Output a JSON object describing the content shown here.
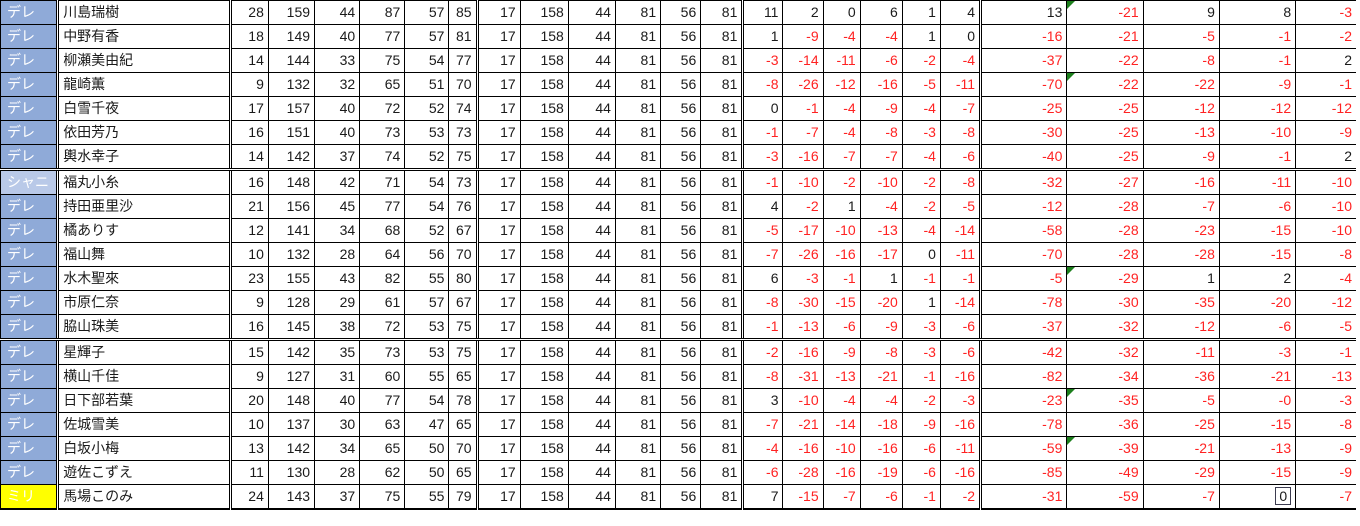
{
  "colors": {
    "negative_text": "#ff2222",
    "positive_text": "#1a1a1a",
    "dere_bg": "#8faad8",
    "shani_bg": "#b9c9e8",
    "miri_bg": "#ffff00",
    "label_text": "#ffffff",
    "triangle": "#1d801d"
  },
  "sheet": {
    "group_separators_after_rows": [
      7,
      14
    ],
    "rows": [
      {
        "tag": "デレ",
        "type": "dere",
        "name": "川島瑞樹",
        "g1": [
          "28",
          "159",
          "44",
          "87",
          "57",
          "85"
        ],
        "g2": [
          "17",
          "158",
          "44",
          "81",
          "56",
          "81"
        ],
        "g3": [
          "11",
          "2",
          "0",
          "6",
          "1",
          "4"
        ],
        "g4": [
          "13",
          "-21",
          "9",
          "8",
          "-3"
        ],
        "triangle": 1
      },
      {
        "tag": "デレ",
        "type": "dere",
        "name": "中野有香",
        "g1": [
          "18",
          "149",
          "40",
          "77",
          "57",
          "81"
        ],
        "g2": [
          "17",
          "158",
          "44",
          "81",
          "56",
          "81"
        ],
        "g3": [
          "1",
          "-9",
          "-4",
          "-4",
          "1",
          "0"
        ],
        "g4": [
          "-16",
          "-21",
          "-5",
          "-1",
          "-2"
        ]
      },
      {
        "tag": "デレ",
        "type": "dere",
        "name": "柳瀬美由紀",
        "g1": [
          "14",
          "144",
          "33",
          "75",
          "54",
          "77"
        ],
        "g2": [
          "17",
          "158",
          "44",
          "81",
          "56",
          "81"
        ],
        "g3": [
          "-3",
          "-14",
          "-11",
          "-6",
          "-2",
          "-4"
        ],
        "g4": [
          "-37",
          "-22",
          "-8",
          "-1",
          "2"
        ]
      },
      {
        "tag": "デレ",
        "type": "dere",
        "name": "龍崎薫",
        "g1": [
          "9",
          "132",
          "32",
          "65",
          "51",
          "70"
        ],
        "g2": [
          "17",
          "158",
          "44",
          "81",
          "56",
          "81"
        ],
        "g3": [
          "-8",
          "-26",
          "-12",
          "-16",
          "-5",
          "-11"
        ],
        "g4": [
          "-70",
          "-22",
          "-22",
          "-9",
          "-1"
        ],
        "triangle": 1
      },
      {
        "tag": "デレ",
        "type": "dere",
        "name": "白雪千夜",
        "g1": [
          "17",
          "157",
          "40",
          "72",
          "52",
          "74"
        ],
        "g2": [
          "17",
          "158",
          "44",
          "81",
          "56",
          "81"
        ],
        "g3": [
          "0",
          "-1",
          "-4",
          "-9",
          "-4",
          "-7"
        ],
        "g4": [
          "-25",
          "-25",
          "-12",
          "-12",
          "-12"
        ]
      },
      {
        "tag": "デレ",
        "type": "dere",
        "name": "依田芳乃",
        "g1": [
          "16",
          "151",
          "40",
          "73",
          "53",
          "73"
        ],
        "g2": [
          "17",
          "158",
          "44",
          "81",
          "56",
          "81"
        ],
        "g3": [
          "-1",
          "-7",
          "-4",
          "-8",
          "-3",
          "-8"
        ],
        "g4": [
          "-30",
          "-25",
          "-13",
          "-10",
          "-9"
        ]
      },
      {
        "tag": "デレ",
        "type": "dere",
        "name": "輿水幸子",
        "g1": [
          "14",
          "142",
          "37",
          "74",
          "52",
          "75"
        ],
        "g2": [
          "17",
          "158",
          "44",
          "81",
          "56",
          "81"
        ],
        "g3": [
          "-3",
          "-16",
          "-7",
          "-7",
          "-4",
          "-6"
        ],
        "g4": [
          "-40",
          "-25",
          "-9",
          "-1",
          "2"
        ]
      },
      {
        "tag": "シャニ",
        "type": "shani",
        "name": "福丸小糸",
        "g1": [
          "16",
          "148",
          "42",
          "71",
          "54",
          "73"
        ],
        "g2": [
          "17",
          "158",
          "44",
          "81",
          "56",
          "81"
        ],
        "g3": [
          "-1",
          "-10",
          "-2",
          "-10",
          "-2",
          "-8"
        ],
        "g4": [
          "-32",
          "-27",
          "-16",
          "-11",
          "-10"
        ]
      },
      {
        "tag": "デレ",
        "type": "dere",
        "name": "持田亜里沙",
        "g1": [
          "21",
          "156",
          "45",
          "77",
          "54",
          "76"
        ],
        "g2": [
          "17",
          "158",
          "44",
          "81",
          "56",
          "81"
        ],
        "g3": [
          "4",
          "-2",
          "1",
          "-4",
          "-2",
          "-5"
        ],
        "g4": [
          "-12",
          "-28",
          "-7",
          "-6",
          "-10"
        ]
      },
      {
        "tag": "デレ",
        "type": "dere",
        "name": "橘ありす",
        "g1": [
          "12",
          "141",
          "34",
          "68",
          "52",
          "67"
        ],
        "g2": [
          "17",
          "158",
          "44",
          "81",
          "56",
          "81"
        ],
        "g3": [
          "-5",
          "-17",
          "-10",
          "-13",
          "-4",
          "-14"
        ],
        "g4": [
          "-58",
          "-28",
          "-23",
          "-15",
          "-10"
        ]
      },
      {
        "tag": "デレ",
        "type": "dere",
        "name": "福山舞",
        "g1": [
          "10",
          "132",
          "28",
          "64",
          "56",
          "70"
        ],
        "g2": [
          "17",
          "158",
          "44",
          "81",
          "56",
          "81"
        ],
        "g3": [
          "-7",
          "-26",
          "-16",
          "-17",
          "0",
          "-11"
        ],
        "g4": [
          "-70",
          "-28",
          "-28",
          "-15",
          "-8"
        ]
      },
      {
        "tag": "デレ",
        "type": "dere",
        "name": "水木聖來",
        "g1": [
          "23",
          "155",
          "43",
          "82",
          "55",
          "80"
        ],
        "g2": [
          "17",
          "158",
          "44",
          "81",
          "56",
          "81"
        ],
        "g3": [
          "6",
          "-3",
          "-1",
          "1",
          "-1",
          "-1"
        ],
        "g4": [
          "-5",
          "-29",
          "1",
          "2",
          "-4"
        ],
        "triangle": 1
      },
      {
        "tag": "デレ",
        "type": "dere",
        "name": "市原仁奈",
        "g1": [
          "9",
          "128",
          "29",
          "61",
          "57",
          "67"
        ],
        "g2": [
          "17",
          "158",
          "44",
          "81",
          "56",
          "81"
        ],
        "g3": [
          "-8",
          "-30",
          "-15",
          "-20",
          "1",
          "-14"
        ],
        "g4": [
          "-78",
          "-30",
          "-35",
          "-20",
          "-12"
        ]
      },
      {
        "tag": "デレ",
        "type": "dere",
        "name": "脇山珠美",
        "g1": [
          "16",
          "145",
          "38",
          "72",
          "53",
          "75"
        ],
        "g2": [
          "17",
          "158",
          "44",
          "81",
          "56",
          "81"
        ],
        "g3": [
          "-1",
          "-13",
          "-6",
          "-9",
          "-3",
          "-6"
        ],
        "g4": [
          "-37",
          "-32",
          "-12",
          "-6",
          "-5"
        ]
      },
      {
        "tag": "デレ",
        "type": "dere",
        "name": "星輝子",
        "g1": [
          "15",
          "142",
          "35",
          "73",
          "53",
          "75"
        ],
        "g2": [
          "17",
          "158",
          "44",
          "81",
          "56",
          "81"
        ],
        "g3": [
          "-2",
          "-16",
          "-9",
          "-8",
          "-3",
          "-6"
        ],
        "g4": [
          "-42",
          "-32",
          "-11",
          "-3",
          "-1"
        ]
      },
      {
        "tag": "デレ",
        "type": "dere",
        "name": "横山千佳",
        "g1": [
          "9",
          "127",
          "31",
          "60",
          "55",
          "65"
        ],
        "g2": [
          "17",
          "158",
          "44",
          "81",
          "56",
          "81"
        ],
        "g3": [
          "-8",
          "-31",
          "-13",
          "-21",
          "-1",
          "-16"
        ],
        "g4": [
          "-82",
          "-34",
          "-36",
          "-21",
          "-13"
        ]
      },
      {
        "tag": "デレ",
        "type": "dere",
        "name": "日下部若葉",
        "g1": [
          "20",
          "148",
          "40",
          "77",
          "54",
          "78"
        ],
        "g2": [
          "17",
          "158",
          "44",
          "81",
          "56",
          "81"
        ],
        "g3": [
          "3",
          "-10",
          "-4",
          "-4",
          "-2",
          "-3"
        ],
        "g4": [
          "-23",
          "-35",
          "-5",
          "-0",
          "-3"
        ],
        "triangle": 1
      },
      {
        "tag": "デレ",
        "type": "dere",
        "name": "佐城雪美",
        "g1": [
          "10",
          "137",
          "30",
          "63",
          "47",
          "65"
        ],
        "g2": [
          "17",
          "158",
          "44",
          "81",
          "56",
          "81"
        ],
        "g3": [
          "-7",
          "-21",
          "-14",
          "-18",
          "-9",
          "-16"
        ],
        "g4": [
          "-78",
          "-36",
          "-25",
          "-15",
          "-8"
        ]
      },
      {
        "tag": "デレ",
        "type": "dere",
        "name": "白坂小梅",
        "g1": [
          "13",
          "142",
          "34",
          "65",
          "50",
          "70"
        ],
        "g2": [
          "17",
          "158",
          "44",
          "81",
          "56",
          "81"
        ],
        "g3": [
          "-4",
          "-16",
          "-10",
          "-16",
          "-6",
          "-11"
        ],
        "g4": [
          "-59",
          "-39",
          "-21",
          "-13",
          "-9"
        ],
        "triangle": 1
      },
      {
        "tag": "デレ",
        "type": "dere",
        "name": "遊佐こずえ",
        "g1": [
          "11",
          "130",
          "28",
          "62",
          "50",
          "65"
        ],
        "g2": [
          "17",
          "158",
          "44",
          "81",
          "56",
          "81"
        ],
        "g3": [
          "-6",
          "-28",
          "-16",
          "-19",
          "-6",
          "-16"
        ],
        "g4": [
          "-85",
          "-49",
          "-29",
          "-15",
          "-9"
        ]
      },
      {
        "tag": "ミリ",
        "type": "miri",
        "name": "馬場このみ",
        "g1": [
          "24",
          "143",
          "37",
          "75",
          "55",
          "79"
        ],
        "g2": [
          "17",
          "158",
          "44",
          "81",
          "56",
          "81"
        ],
        "g3": [
          "7",
          "-15",
          "-7",
          "-6",
          "-1",
          "-2"
        ],
        "g4": [
          "-31",
          "-59",
          "-7",
          "0",
          "-7"
        ],
        "boxed": 3
      }
    ]
  }
}
